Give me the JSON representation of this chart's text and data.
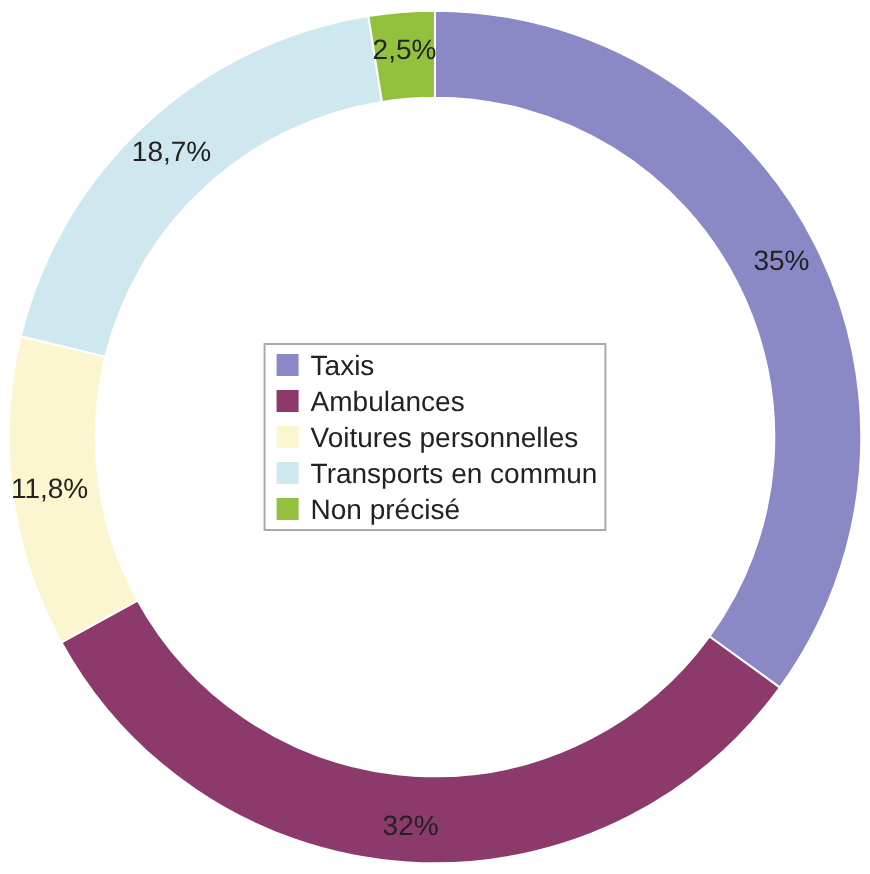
{
  "chart_data": {
    "type": "donut",
    "categories": [
      "Taxis",
      "Ambulances",
      "Voitures personnelles",
      "Transports en commun",
      "Non précisé"
    ],
    "values": [
      35,
      32,
      11.8,
      18.7,
      2.5
    ],
    "value_labels": [
      "35%",
      "32%",
      "11,8%",
      "18,7%",
      "2,5%"
    ],
    "colors": [
      "#8b88c6",
      "#8b3a6b",
      "#fbf6cf",
      "#cfe8f0",
      "#92c13e"
    ],
    "legend": "center"
  }
}
